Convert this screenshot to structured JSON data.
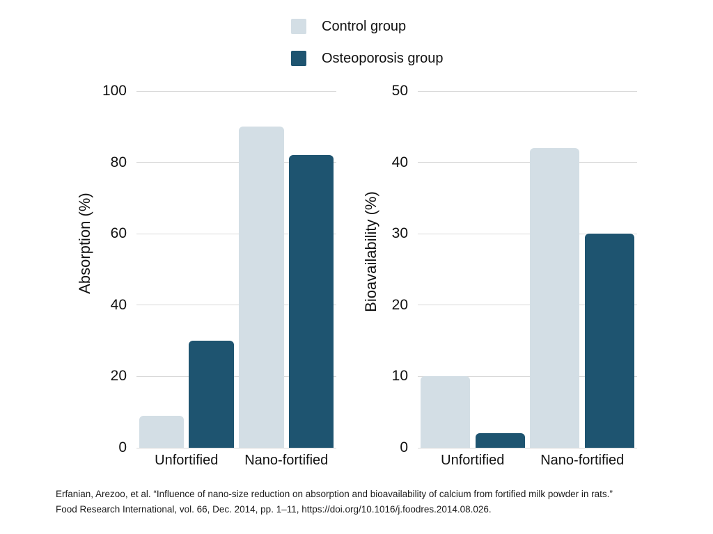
{
  "page": {
    "background": "#ffffff"
  },
  "legend": {
    "items": [
      {
        "label": "Control group",
        "color": "#d3dee5"
      },
      {
        "label": "Osteoporosis group",
        "color": "#1e5470"
      }
    ]
  },
  "chart_data": [
    {
      "type": "bar",
      "title": "",
      "xlabel": "",
      "ylabel": "Absorption (%)",
      "categories": [
        "Unfortified",
        "Nano-fortified"
      ],
      "series": [
        {
          "name": "Control group",
          "color": "#d3dee5",
          "values": [
            9,
            90
          ]
        },
        {
          "name": "Osteoporosis group",
          "color": "#1e5470",
          "values": [
            30,
            82
          ]
        }
      ],
      "ylim": [
        0,
        100
      ],
      "ytick_step": 20,
      "yticks": [
        0,
        20,
        40,
        60,
        80,
        100
      ],
      "grid": true,
      "legend_position": "top"
    },
    {
      "type": "bar",
      "title": "",
      "xlabel": "",
      "ylabel": "Bioavailability (%)",
      "categories": [
        "Unfortified",
        "Nano-fortified"
      ],
      "series": [
        {
          "name": "Control group",
          "color": "#d3dee5",
          "values": [
            10,
            42
          ]
        },
        {
          "name": "Osteoporosis group",
          "color": "#1e5470",
          "values": [
            2,
            30
          ]
        }
      ],
      "ylim": [
        0,
        50
      ],
      "ytick_step": 10,
      "yticks": [
        0,
        10,
        20,
        30,
        40,
        50
      ],
      "grid": true,
      "legend_position": "top"
    }
  ],
  "citation": {
    "line1": "Erfanian, Arezoo, et al. “Influence of nano-size reduction on absorption and bioavailability of calcium from fortified milk powder in rats.”",
    "line2": "Food Research International, vol. 66, Dec. 2014, pp. 1–11, https://doi.org/10.1016/j.foodres.2014.08.026."
  }
}
